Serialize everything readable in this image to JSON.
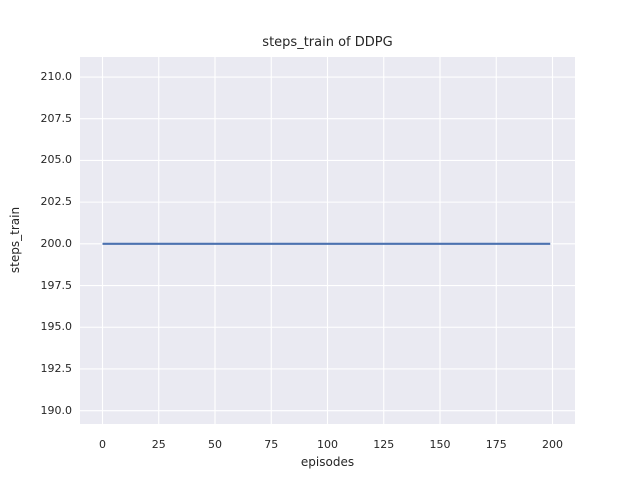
{
  "chart_data": {
    "type": "line",
    "title": "steps_train of DDPG",
    "xlabel": "episodes",
    "ylabel": "steps_train",
    "series": [
      {
        "name": "steps_train",
        "x": [
          0,
          199
        ],
        "y": [
          200,
          200
        ]
      }
    ],
    "x_ticks": {
      "values": [
        0,
        25,
        50,
        75,
        100,
        125,
        150,
        175,
        200
      ],
      "labels": [
        "0",
        "25",
        "50",
        "75",
        "100",
        "125",
        "150",
        "175",
        "200"
      ]
    },
    "y_ticks": {
      "values": [
        190,
        192.5,
        195,
        197.5,
        200,
        202.5,
        205,
        207.5,
        210
      ],
      "labels": [
        "190.0",
        "192.5",
        "195.0",
        "197.5",
        "200.0",
        "202.5",
        "205.0",
        "207.5",
        "210.0"
      ]
    },
    "xlim": [
      -10,
      210
    ],
    "ylim": [
      189.2,
      211.2
    ],
    "grid": true,
    "legend": false,
    "style": "seaborn-darkgrid",
    "colors": {
      "line": "#4c72b0",
      "plot_background": "#eaeaf2",
      "grid": "#ffffff",
      "figure_background": "#ffffff",
      "text": "#262626"
    }
  }
}
